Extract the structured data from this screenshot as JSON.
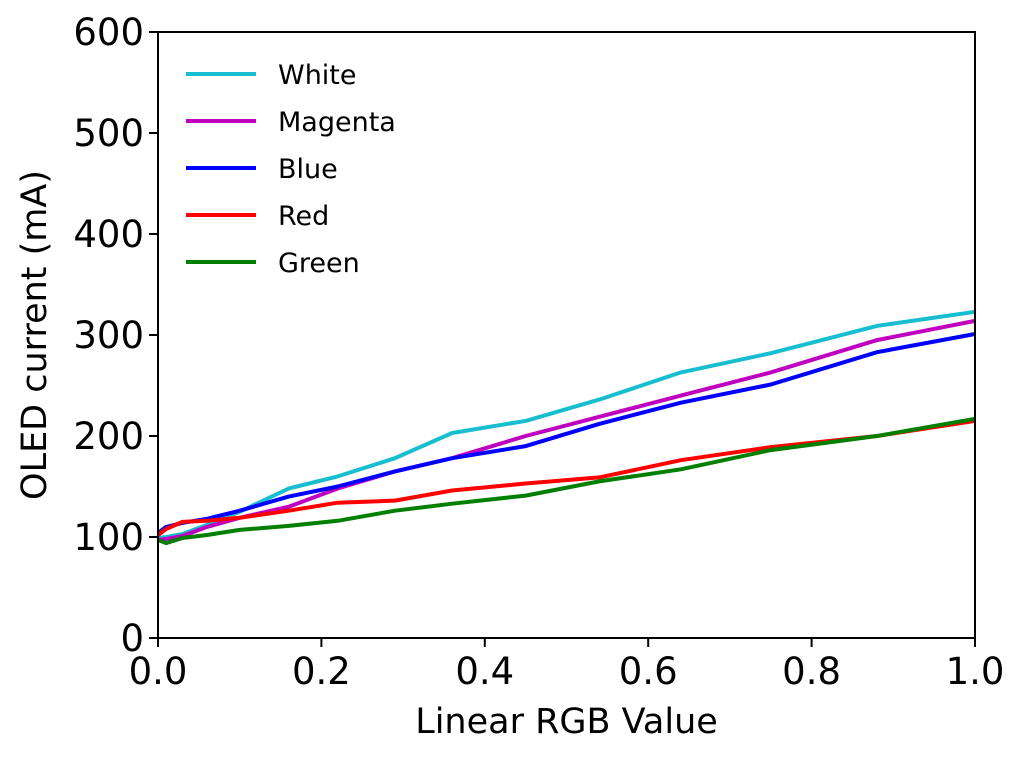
{
  "chart_data": {
    "type": "line",
    "xlabel": "Linear RGB Value",
    "ylabel": "OLED current (mA)",
    "xlim": [
      0.0,
      1.0
    ],
    "ylim": [
      0,
      600
    ],
    "xticks": [
      "0.0",
      "0.2",
      "0.4",
      "0.6",
      "0.8",
      "1.0"
    ],
    "yticks": [
      "0",
      "100",
      "200",
      "300",
      "400",
      "500",
      "600"
    ],
    "grid": false,
    "legend_position": "top-left",
    "series": [
      {
        "name": "White",
        "color": "#17becf",
        "x": [
          0.0,
          0.01,
          0.03,
          0.06,
          0.1,
          0.16,
          0.22,
          0.29,
          0.36,
          0.45,
          0.54,
          0.64,
          0.75,
          0.88,
          1.0
        ],
        "y": [
          99,
          100,
          103,
          112,
          125,
          148,
          160,
          178,
          203,
          215,
          236,
          263,
          282,
          309,
          323
        ]
      },
      {
        "name": "Magenta",
        "color": "#bf00bf",
        "x": [
          0.0,
          0.01,
          0.03,
          0.06,
          0.1,
          0.16,
          0.22,
          0.29,
          0.36,
          0.45,
          0.54,
          0.64,
          0.75,
          0.88,
          1.0
        ],
        "y": [
          97,
          98,
          101,
          110,
          119,
          130,
          148,
          165,
          178,
          200,
          219,
          240,
          263,
          295,
          314
        ]
      },
      {
        "name": "Blue",
        "color": "#0000ff",
        "x": [
          0.0,
          0.01,
          0.03,
          0.06,
          0.1,
          0.16,
          0.22,
          0.29,
          0.36,
          0.45,
          0.54,
          0.64,
          0.75,
          0.88,
          1.0
        ],
        "y": [
          104,
          110,
          114,
          118,
          126,
          140,
          150,
          165,
          178,
          190,
          212,
          233,
          251,
          283,
          301
        ]
      },
      {
        "name": "Red",
        "color": "#ff0000",
        "x": [
          0.0,
          0.01,
          0.03,
          0.06,
          0.1,
          0.16,
          0.22,
          0.29,
          0.36,
          0.45,
          0.54,
          0.64,
          0.75,
          0.88,
          1.0
        ],
        "y": [
          102,
          108,
          115,
          116,
          119,
          126,
          134,
          136,
          146,
          153,
          159,
          176,
          189,
          200,
          215
        ]
      },
      {
        "name": "Green",
        "color": "#007f00",
        "x": [
          0.0,
          0.01,
          0.03,
          0.06,
          0.1,
          0.16,
          0.22,
          0.29,
          0.36,
          0.45,
          0.54,
          0.64,
          0.75,
          0.88,
          1.0
        ],
        "y": [
          97,
          94,
          99,
          102,
          107,
          111,
          116,
          126,
          133,
          141,
          155,
          167,
          186,
          200,
          217
        ]
      }
    ]
  }
}
